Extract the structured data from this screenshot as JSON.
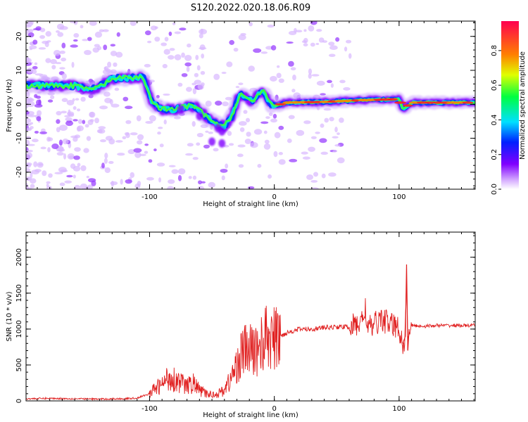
{
  "title": "S120.2022.020.18.06.R09",
  "charts": [
    {
      "type": "heatmap",
      "xlabel": "Height of straight line (km)",
      "ylabel": "Frequency (Hz)",
      "xlim": [
        -199,
        161
      ],
      "ylim": [
        -25,
        24.5
      ],
      "xticks": [
        -100,
        0,
        100
      ],
      "yticks": [
        -20,
        -10,
        0,
        10,
        20
      ],
      "colorbar": {
        "label": "Normalized spectral amplitude",
        "range": [
          0.0,
          0.97
        ],
        "ticks": [
          "0.0",
          "0.2",
          "0.4",
          "0.6",
          "0.8"
        ],
        "tick_values": [
          0.0,
          0.2,
          0.4,
          0.6,
          0.8
        ]
      },
      "ridge_path": [
        [
          -199,
          5.5
        ],
        [
          -160,
          5.5
        ],
        [
          -150,
          4.5
        ],
        [
          -142,
          4.8
        ],
        [
          -130,
          7.5
        ],
        [
          -105,
          8
        ],
        [
          -98,
          0.5
        ],
        [
          -90,
          -1.5
        ],
        [
          -80,
          -1.5
        ],
        [
          -70,
          -0.5
        ],
        [
          -62,
          -1
        ],
        [
          -55,
          -3.5
        ],
        [
          -48,
          -5.5
        ],
        [
          -40,
          -6.5
        ],
        [
          -34,
          -3.5
        ],
        [
          -30,
          1
        ],
        [
          -27,
          3
        ],
        [
          -18,
          0.8
        ],
        [
          -12,
          3
        ],
        [
          -8,
          4
        ],
        [
          -5,
          0.5
        ],
        [
          0,
          -0.5
        ],
        [
          10,
          0.5
        ],
        [
          40,
          0.7
        ],
        [
          70,
          1.2
        ],
        [
          100,
          1.5
        ],
        [
          103,
          -1.5
        ],
        [
          110,
          0.5
        ],
        [
          161,
          0.5
        ]
      ],
      "series_colors": [
        "#8000ff",
        "#0040ff",
        "#00e0e0",
        "#40ff40",
        "#ffff00",
        "#ff8000",
        "#ff2020"
      ]
    },
    {
      "type": "line",
      "xlabel": "Height of straight line (km)",
      "ylabel": "SNR (10 * v/v)",
      "xlim": [
        -199,
        161
      ],
      "ylim": [
        0,
        2350
      ],
      "xticks": [
        -100,
        0,
        100
      ],
      "yticks": [
        0,
        500,
        1000,
        1500,
        2000
      ],
      "line_color": "#e02020",
      "x": [
        -199,
        -180,
        -160,
        -140,
        -120,
        -110,
        -100,
        -95,
        -90,
        -85,
        -80,
        -75,
        -70,
        -65,
        -60,
        -55,
        -50,
        -45,
        -40,
        -35,
        -30,
        -25,
        -20,
        -15,
        -10,
        -5,
        0,
        5,
        10,
        20,
        30,
        40,
        50,
        60,
        65,
        70,
        73,
        75,
        80,
        85,
        90,
        95,
        100,
        103,
        105,
        106,
        107,
        108,
        110,
        120,
        130,
        140,
        150,
        161
      ],
      "y": [
        30,
        35,
        30,
        25,
        30,
        40,
        100,
        180,
        220,
        330,
        300,
        260,
        200,
        250,
        150,
        100,
        90,
        100,
        160,
        300,
        500,
        700,
        700,
        700,
        800,
        900,
        850,
        900,
        950,
        1000,
        1000,
        1020,
        1030,
        1030,
        1050,
        1100,
        1300,
        1000,
        1050,
        1150,
        1100,
        1050,
        1000,
        800,
        900,
        1900,
        700,
        1000,
        1050,
        1040,
        1050,
        1050,
        1050,
        1050
      ]
    }
  ]
}
